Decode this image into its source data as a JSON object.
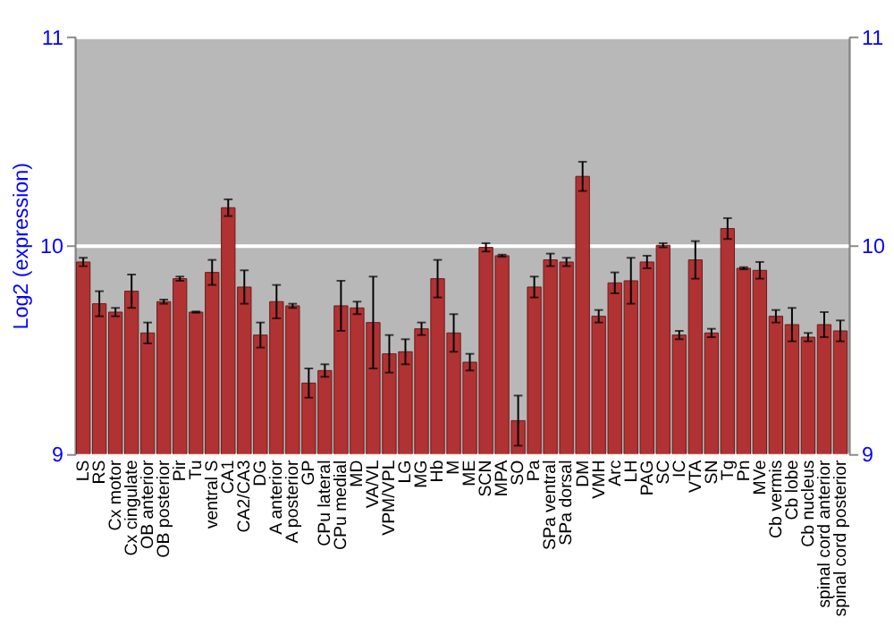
{
  "chart_data": {
    "type": "bar",
    "ylabel": "Log2 (expression)",
    "categories": [
      "LS",
      "RS",
      "Cx motor",
      "Cx cingulate",
      "OB anterior",
      "OB posterior",
      "Pir",
      "Tu",
      "ventral S",
      "CA1",
      "CA2/CA3",
      "DG",
      "A anterior",
      "A posterior",
      "GP",
      "CPu lateral",
      "CPu medial",
      "MD",
      "VA/VL",
      "VPM/VPL",
      "LG",
      "MG",
      "Hb",
      "M",
      "ME",
      "SCN",
      "MPA",
      "SO",
      "Pa",
      "SPa ventral",
      "SPa dorsal",
      "DM",
      "VMH",
      "Arc",
      "LH",
      "PAG",
      "SC",
      "IC",
      "VTA",
      "SN",
      "Tg",
      "Pn",
      "MVe",
      "Cb vermis",
      "Cb lobe",
      "Cb nucleus",
      "spinal cord anterior",
      "spinal cord posterior"
    ],
    "series": [
      {
        "color": "#b03232",
        "values": [
          9.92,
          9.72,
          9.68,
          9.78,
          9.58,
          9.73,
          9.84,
          9.68,
          9.87,
          10.18,
          9.8,
          9.57,
          9.73,
          9.71,
          9.34,
          9.4,
          9.71,
          9.7,
          9.63,
          9.48,
          9.49,
          9.6,
          9.84,
          9.58,
          9.44,
          9.99,
          9.95,
          9.16,
          9.8,
          9.93,
          9.92,
          10.33,
          9.66,
          9.82,
          9.83,
          9.92,
          10.0,
          9.57,
          9.93,
          9.58,
          10.08,
          9.89,
          9.88,
          9.66,
          9.62,
          9.56,
          9.62,
          9.59
        ],
        "errors": [
          0.02,
          0.06,
          0.02,
          0.08,
          0.05,
          0.01,
          0.01,
          0.003,
          0.06,
          0.04,
          0.08,
          0.06,
          0.08,
          0.01,
          0.07,
          0.03,
          0.12,
          0.03,
          0.22,
          0.09,
          0.06,
          0.03,
          0.09,
          0.09,
          0.04,
          0.02,
          0.005,
          0.12,
          0.05,
          0.03,
          0.02,
          0.07,
          0.03,
          0.05,
          0.11,
          0.03,
          0.01,
          0.02,
          0.09,
          0.02,
          0.05,
          0.005,
          0.04,
          0.03,
          0.08,
          0.02,
          0.06,
          0.05
        ]
      }
    ],
    "ylim": [
      9,
      11
    ],
    "yticks": [
      9,
      10,
      11
    ],
    "y2lim": [
      9,
      11
    ],
    "y2ticks": [
      9,
      10,
      11
    ],
    "grid": "y"
  }
}
